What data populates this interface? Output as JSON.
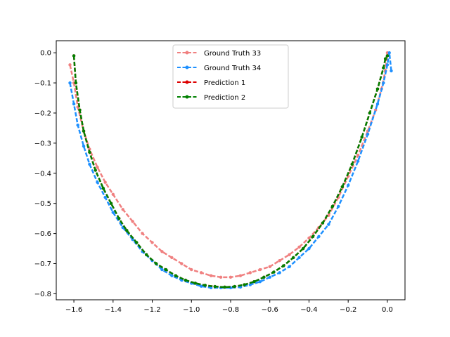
{
  "chart_data": {
    "type": "line",
    "title": "",
    "xlabel": "",
    "ylabel": "",
    "xlim": [
      -1.69,
      0.09
    ],
    "ylim": [
      -0.82,
      0.04
    ],
    "x_ticks": [
      -1.6,
      -1.4,
      -1.2,
      -1.0,
      -0.8,
      -0.6,
      -0.4,
      -0.2,
      0.0
    ],
    "x_tick_labels": [
      "−1.6",
      "−1.4",
      "−1.2",
      "−1.0",
      "−0.8",
      "−0.6",
      "−0.4",
      "−0.2",
      "0.0"
    ],
    "y_ticks": [
      0.0,
      -0.1,
      -0.2,
      -0.3,
      -0.4,
      -0.5,
      -0.6,
      -0.7,
      -0.8
    ],
    "y_tick_labels": [
      "0.0",
      "−0.1",
      "−0.2",
      "−0.3",
      "−0.4",
      "−0.5",
      "−0.6",
      "−0.7",
      "−0.8"
    ],
    "grid": false,
    "legend_position": "top-center",
    "series": [
      {
        "name": "Ground Truth 33",
        "color": "#f08080",
        "style": "dashed",
        "marker": "dot",
        "x": [
          -1.62,
          -1.6,
          -1.58,
          -1.55,
          -1.52,
          -1.48,
          -1.44,
          -1.4,
          -1.35,
          -1.3,
          -1.25,
          -1.2,
          -1.15,
          -1.1,
          -1.05,
          -1.0,
          -0.95,
          -0.9,
          -0.85,
          -0.8,
          -0.75,
          -0.7,
          -0.65,
          -0.6,
          -0.55,
          -0.5,
          -0.45,
          -0.4,
          -0.35,
          -0.3,
          -0.25,
          -0.2,
          -0.15,
          -0.1,
          -0.06,
          -0.03,
          -0.01,
          0.0
        ],
        "y": [
          -0.04,
          -0.1,
          -0.18,
          -0.26,
          -0.32,
          -0.38,
          -0.43,
          -0.47,
          -0.52,
          -0.56,
          -0.6,
          -0.63,
          -0.66,
          -0.68,
          -0.7,
          -0.72,
          -0.73,
          -0.74,
          -0.745,
          -0.745,
          -0.74,
          -0.73,
          -0.72,
          -0.71,
          -0.69,
          -0.67,
          -0.645,
          -0.615,
          -0.58,
          -0.54,
          -0.48,
          -0.41,
          -0.34,
          -0.26,
          -0.19,
          -0.12,
          -0.06,
          0.0
        ]
      },
      {
        "name": "Ground Truth 34",
        "color": "#1e90ff",
        "style": "dashed",
        "marker": "dot",
        "x": [
          -1.62,
          -1.6,
          -1.58,
          -1.55,
          -1.52,
          -1.48,
          -1.44,
          -1.4,
          -1.35,
          -1.3,
          -1.25,
          -1.2,
          -1.15,
          -1.1,
          -1.05,
          -1.0,
          -0.95,
          -0.9,
          -0.85,
          -0.8,
          -0.75,
          -0.7,
          -0.65,
          -0.6,
          -0.55,
          -0.5,
          -0.45,
          -0.4,
          -0.35,
          -0.3,
          -0.25,
          -0.2,
          -0.15,
          -0.1,
          -0.05,
          -0.02,
          0.0,
          0.01,
          0.02
        ],
        "y": [
          -0.1,
          -0.17,
          -0.24,
          -0.31,
          -0.37,
          -0.43,
          -0.48,
          -0.53,
          -0.58,
          -0.62,
          -0.66,
          -0.69,
          -0.72,
          -0.74,
          -0.755,
          -0.765,
          -0.775,
          -0.78,
          -0.78,
          -0.78,
          -0.778,
          -0.77,
          -0.76,
          -0.745,
          -0.73,
          -0.71,
          -0.68,
          -0.65,
          -0.61,
          -0.57,
          -0.51,
          -0.44,
          -0.36,
          -0.27,
          -0.17,
          -0.1,
          -0.04,
          0.0,
          -0.06
        ]
      },
      {
        "name": "Prediction 1",
        "color": "#dd0000",
        "style": "dashed",
        "marker": "dot",
        "x": [
          -1.6,
          -1.59,
          -1.57,
          -1.55,
          -1.52,
          -1.49,
          -1.45,
          -1.41,
          -1.37,
          -1.33,
          -1.28,
          -1.23,
          -1.18,
          -1.13,
          -1.08,
          -1.03,
          -0.98,
          -0.93,
          -0.88,
          -0.83,
          -0.78,
          -0.73,
          -0.68,
          -0.63,
          -0.58,
          -0.53,
          -0.48,
          -0.43,
          -0.38,
          -0.33,
          -0.28,
          -0.23,
          -0.18,
          -0.13,
          -0.09,
          -0.05,
          -0.02,
          -0.01,
          0.0
        ],
        "y": [
          -0.01,
          -0.1,
          -0.19,
          -0.26,
          -0.33,
          -0.39,
          -0.45,
          -0.5,
          -0.55,
          -0.59,
          -0.63,
          -0.67,
          -0.7,
          -0.72,
          -0.74,
          -0.755,
          -0.765,
          -0.772,
          -0.776,
          -0.778,
          -0.776,
          -0.77,
          -0.76,
          -0.745,
          -0.728,
          -0.707,
          -0.68,
          -0.65,
          -0.61,
          -0.565,
          -0.51,
          -0.445,
          -0.37,
          -0.28,
          -0.2,
          -0.12,
          -0.05,
          -0.02,
          -0.01
        ]
      },
      {
        "name": "Prediction 2",
        "color": "#008000",
        "style": "dashed",
        "marker": "dot",
        "x": [
          -1.6,
          -1.59,
          -1.57,
          -1.55,
          -1.52,
          -1.49,
          -1.45,
          -1.41,
          -1.37,
          -1.33,
          -1.28,
          -1.23,
          -1.18,
          -1.13,
          -1.08,
          -1.03,
          -0.98,
          -0.93,
          -0.88,
          -0.83,
          -0.78,
          -0.73,
          -0.68,
          -0.63,
          -0.58,
          -0.53,
          -0.48,
          -0.43,
          -0.38,
          -0.33,
          -0.28,
          -0.23,
          -0.18,
          -0.13,
          -0.09,
          -0.05,
          -0.02,
          -0.01,
          0.0
        ],
        "y": [
          -0.01,
          -0.1,
          -0.19,
          -0.26,
          -0.33,
          -0.39,
          -0.45,
          -0.5,
          -0.55,
          -0.59,
          -0.63,
          -0.67,
          -0.7,
          -0.72,
          -0.74,
          -0.755,
          -0.765,
          -0.772,
          -0.776,
          -0.778,
          -0.776,
          -0.77,
          -0.76,
          -0.745,
          -0.728,
          -0.707,
          -0.68,
          -0.65,
          -0.61,
          -0.565,
          -0.51,
          -0.445,
          -0.37,
          -0.28,
          -0.2,
          -0.12,
          -0.05,
          -0.02,
          -0.01
        ]
      }
    ]
  }
}
